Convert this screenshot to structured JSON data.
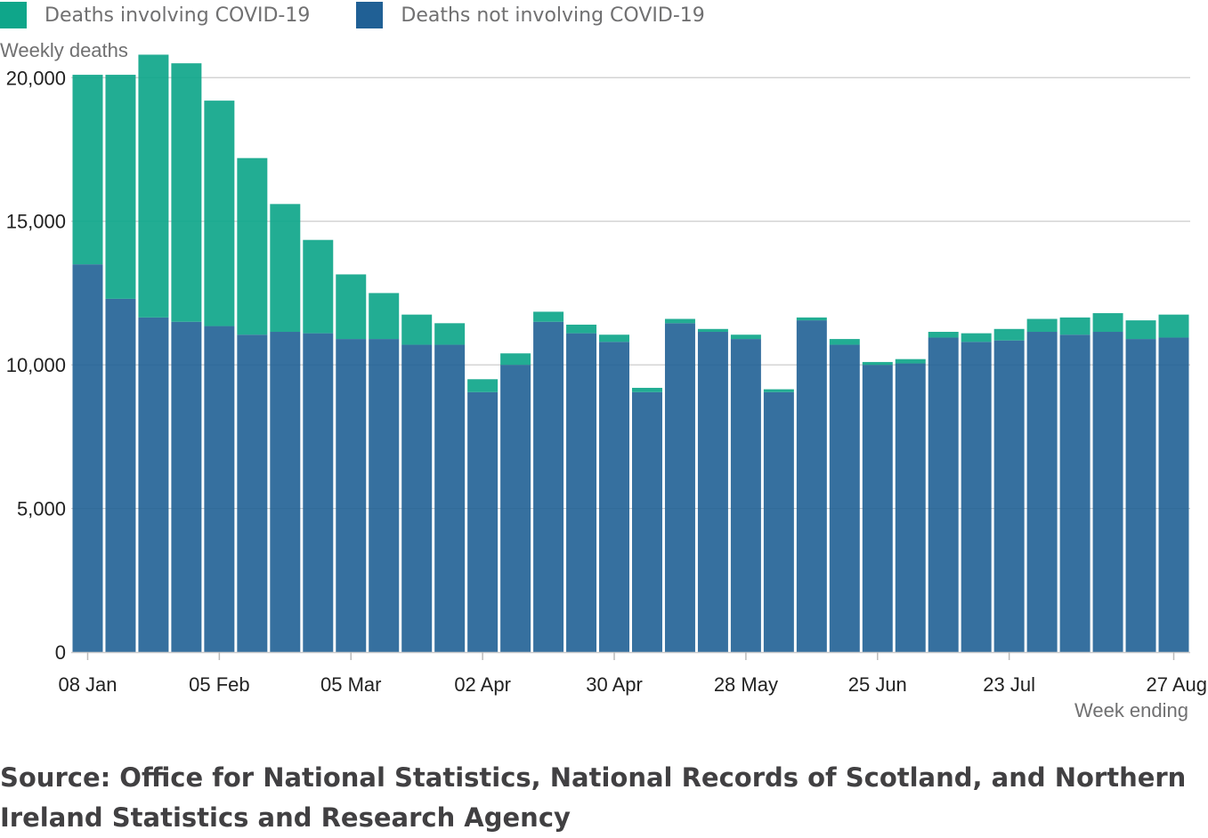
{
  "chart_data": {
    "type": "bar",
    "stacked": true,
    "title": "",
    "ylabel": "Weekly deaths",
    "xlabel": "Week ending",
    "ylim": [
      0,
      21000
    ],
    "yticks": [
      0,
      5000,
      10000,
      15000,
      20000
    ],
    "ytick_labels": [
      "0",
      "5,000",
      "10,000",
      "15,000",
      "20,000"
    ],
    "grid": true,
    "legend": "top-left",
    "x_tick_labels": [
      {
        "index": 0,
        "label": "08 Jan"
      },
      {
        "index": 4,
        "label": "05 Feb"
      },
      {
        "index": 8,
        "label": "05 Mar"
      },
      {
        "index": 12,
        "label": "02 Apr"
      },
      {
        "index": 16,
        "label": "30 Apr"
      },
      {
        "index": 20,
        "label": "28 May"
      },
      {
        "index": 24,
        "label": "25 Jun"
      },
      {
        "index": 28,
        "label": "23 Jul"
      },
      {
        "index": 33,
        "label": "27 Aug"
      }
    ],
    "series": [
      {
        "name": "Deaths not involving COVID-19",
        "color": "#206095",
        "values": [
          13500,
          12300,
          11650,
          11500,
          11350,
          11050,
          11150,
          11100,
          10900,
          10900,
          10700,
          10700,
          9050,
          10000,
          11500,
          11100,
          10800,
          9050,
          11450,
          11150,
          10900,
          9050,
          11550,
          10700,
          10000,
          10050,
          10950,
          10800,
          10850,
          11150,
          11050,
          11150,
          10900,
          10950
        ]
      },
      {
        "name": "Deaths involving COVID-19",
        "color": "#0fa68a",
        "values": [
          6600,
          7800,
          9150,
          9000,
          7850,
          6150,
          4450,
          3250,
          2250,
          1600,
          1050,
          750,
          450,
          400,
          350,
          300,
          250,
          150,
          150,
          100,
          150,
          100,
          100,
          200,
          100,
          150,
          200,
          300,
          400,
          450,
          600,
          650,
          650,
          800
        ]
      }
    ]
  },
  "legend": {
    "items": [
      {
        "label": "Deaths involving COVID-19",
        "color": "#0fa68a"
      },
      {
        "label": "Deaths not involving COVID-19",
        "color": "#206095"
      }
    ]
  },
  "source": "Source: Office for National Statistics, National Records of Scotland, and Northern Ireland Statistics and Research Agency"
}
